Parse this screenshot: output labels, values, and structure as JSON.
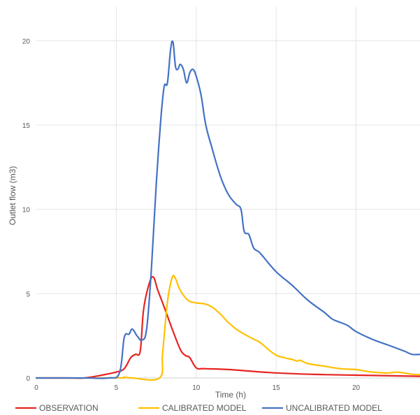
{
  "chart_data": {
    "type": "line",
    "title": "",
    "xlabel": "Time (h)",
    "ylabel": "Outlet flow (m3)",
    "xlim": [
      0,
      24
    ],
    "ylim": [
      0,
      22
    ],
    "xticks": [
      0,
      5,
      10,
      15,
      20
    ],
    "yticks": [
      0,
      5,
      10,
      15,
      20
    ],
    "grid": true,
    "legend_position": "bottom",
    "series": [
      {
        "name": "OBSERVATION",
        "color": "#e52421",
        "points": [
          [
            0,
            0
          ],
          [
            2,
            0
          ],
          [
            3,
            0
          ],
          [
            4,
            0.15
          ],
          [
            5,
            0.35
          ],
          [
            5.5,
            0.55
          ],
          [
            5.9,
            1.2
          ],
          [
            6.2,
            1.4
          ],
          [
            6.5,
            1.6
          ],
          [
            6.7,
            4.0
          ],
          [
            7.0,
            5.4
          ],
          [
            7.3,
            6.0
          ],
          [
            7.6,
            5.2
          ],
          [
            8.0,
            4.2
          ],
          [
            8.5,
            2.9
          ],
          [
            9.0,
            1.7
          ],
          [
            9.3,
            1.35
          ],
          [
            9.6,
            1.2
          ],
          [
            10.0,
            0.6
          ],
          [
            10.5,
            0.55
          ],
          [
            12,
            0.5
          ],
          [
            15,
            0.3
          ],
          [
            18,
            0.2
          ],
          [
            21,
            0.15
          ],
          [
            24,
            0.1
          ]
        ]
      },
      {
        "name": "CALIBRATED MODEL",
        "color": "#ffc000",
        "points": [
          [
            0,
            0
          ],
          [
            5,
            0
          ],
          [
            5.5,
            0.05
          ],
          [
            6,
            0
          ],
          [
            7.7,
            0
          ],
          [
            7.9,
            1.5
          ],
          [
            8.2,
            4.5
          ],
          [
            8.5,
            5.95
          ],
          [
            8.7,
            5.9
          ],
          [
            9,
            5.2
          ],
          [
            9.5,
            4.6
          ],
          [
            10,
            4.45
          ],
          [
            10.5,
            4.4
          ],
          [
            11,
            4.2
          ],
          [
            11.5,
            3.8
          ],
          [
            12,
            3.3
          ],
          [
            12.5,
            2.9
          ],
          [
            13,
            2.6
          ],
          [
            13.5,
            2.35
          ],
          [
            14,
            2.1
          ],
          [
            14.5,
            1.7
          ],
          [
            15,
            1.35
          ],
          [
            15.5,
            1.2
          ],
          [
            16,
            1.1
          ],
          [
            16.3,
            1.0
          ],
          [
            16.5,
            1.05
          ],
          [
            17,
            0.85
          ],
          [
            18,
            0.7
          ],
          [
            19,
            0.55
          ],
          [
            20,
            0.5
          ],
          [
            20.5,
            0.42
          ],
          [
            21,
            0.35
          ],
          [
            22,
            0.3
          ],
          [
            22.5,
            0.35
          ],
          [
            23,
            0.3
          ],
          [
            23.5,
            0.22
          ],
          [
            24,
            0.2
          ]
        ]
      },
      {
        "name": "UNCALIBRATED MODEL",
        "color": "#4472c4",
        "points": [
          [
            0,
            0
          ],
          [
            3,
            0
          ],
          [
            4.5,
            0
          ],
          [
            5.2,
            0.3
          ],
          [
            5.5,
            2.4
          ],
          [
            5.8,
            2.6
          ],
          [
            6.0,
            2.9
          ],
          [
            6.3,
            2.5
          ],
          [
            6.6,
            2.25
          ],
          [
            6.9,
            2.9
          ],
          [
            7.2,
            6.5
          ],
          [
            7.5,
            11.5
          ],
          [
            7.8,
            15.5
          ],
          [
            8.0,
            17.3
          ],
          [
            8.2,
            17.5
          ],
          [
            8.4,
            19.5
          ],
          [
            8.55,
            19.9
          ],
          [
            8.7,
            18.5
          ],
          [
            8.85,
            18.3
          ],
          [
            9.0,
            18.6
          ],
          [
            9.2,
            18.3
          ],
          [
            9.4,
            17.5
          ],
          [
            9.6,
            18.1
          ],
          [
            9.8,
            18.3
          ],
          [
            10.0,
            17.9
          ],
          [
            10.3,
            16.8
          ],
          [
            10.6,
            15.0
          ],
          [
            11,
            13.6
          ],
          [
            11.5,
            12.0
          ],
          [
            12,
            10.9
          ],
          [
            12.5,
            10.3
          ],
          [
            12.8,
            10.0
          ],
          [
            13,
            8.7
          ],
          [
            13.3,
            8.5
          ],
          [
            13.6,
            7.7
          ],
          [
            14,
            7.4
          ],
          [
            15,
            6.3
          ],
          [
            16,
            5.5
          ],
          [
            17,
            4.6
          ],
          [
            18,
            3.9
          ],
          [
            18.5,
            3.5
          ],
          [
            19,
            3.3
          ],
          [
            19.5,
            3.1
          ],
          [
            20,
            2.75
          ],
          [
            21,
            2.3
          ],
          [
            22,
            1.95
          ],
          [
            23,
            1.6
          ],
          [
            23.5,
            1.4
          ],
          [
            24,
            1.4
          ]
        ]
      }
    ]
  }
}
